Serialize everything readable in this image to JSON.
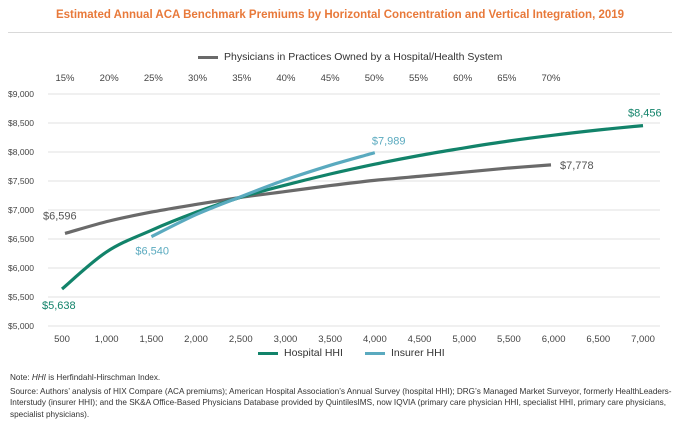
{
  "title": "Estimated Annual ACA Benchmark Premiums by Horizontal Concentration and Vertical Integration, 2019",
  "notes": {
    "note_prefix": "Note: ",
    "note_hhi": "HHI",
    "note_rest": " is Herfindahl-Hirschman Index.",
    "source": "Source: Authors’ analysis of HIX Compare (ACA premiums); American Hospital Association’s Annual Survey (hospital HHI); DRG’s Managed Market Surveyor, formerly HealthLeaders-Interstudy (insurer HHI); and the SK&A Office-Based Physicians Database provided by QuintilesIMS, now IQVIA (primary care physician HHI, specialist HHI, primary care physicians, specialist physicians)."
  },
  "colors": {
    "hospital": "#12836a",
    "insurer": "#5aaabf",
    "physicians": "#6a6a6a",
    "title": "#e8793a",
    "grid": "#d6d6d6"
  },
  "chart_data": {
    "type": "line",
    "title": "Estimated Annual ACA Benchmark Premiums by Horizontal Concentration and Vertical Integration, 2019",
    "ylim": [
      5000,
      9000
    ],
    "y_ticks": [
      "$5,000",
      "$5,500",
      "$6,000",
      "$6,500",
      "$7,000",
      "$7,500",
      "$8,000",
      "$8,500",
      "$9,000"
    ],
    "x_bottom": {
      "lim": [
        500,
        7000
      ],
      "ticks": [
        "500",
        "1,000",
        "1,500",
        "2,000",
        "2,500",
        "3,000",
        "3,500",
        "4,000",
        "4,500",
        "5,000",
        "5,500",
        "6,000",
        "6,500",
        "7,000"
      ]
    },
    "x_top": {
      "lim": [
        15,
        70
      ],
      "ticks": [
        "15%",
        "20%",
        "25%",
        "30%",
        "35%",
        "40%",
        "45%",
        "50%",
        "55%",
        "60%",
        "65%",
        "70%"
      ]
    },
    "grid": "horizontal",
    "series": [
      {
        "name": "Hospital HHI",
        "axis": "bottom",
        "x": [
          500,
          1000,
          1500,
          2000,
          2500,
          3000,
          3500,
          4000,
          4500,
          5000,
          5500,
          6000,
          6500,
          7000
        ],
        "values": [
          5638,
          6280,
          6650,
          6960,
          7220,
          7430,
          7620,
          7790,
          7940,
          8070,
          8190,
          8290,
          8380,
          8456
        ],
        "labels": {
          "start": "$5,638",
          "end": "$8,456"
        }
      },
      {
        "name": "Insurer HHI",
        "axis": "bottom",
        "x": [
          1500,
          2000,
          2500,
          3000,
          3500,
          4000
        ],
        "values": [
          6540,
          6920,
          7230,
          7520,
          7770,
          7989
        ],
        "labels": {
          "start": "$6,540",
          "end": "$7,989"
        }
      },
      {
        "name": "Physicians in Practices Owned by a Hospital/Health System",
        "axis": "top",
        "x": [
          15,
          20,
          25,
          30,
          35,
          40,
          45,
          50,
          55,
          60,
          65,
          70
        ],
        "values": [
          6596,
          6810,
          6970,
          7100,
          7220,
          7320,
          7420,
          7510,
          7580,
          7650,
          7720,
          7778
        ],
        "labels": {
          "start": "$6,596",
          "end": "$7,778"
        }
      }
    ]
  }
}
